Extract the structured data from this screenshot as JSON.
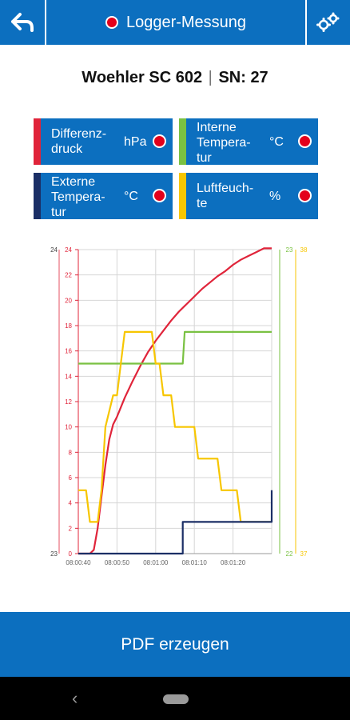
{
  "topbar": {
    "title": "Logger-Messung"
  },
  "device": {
    "name": "Woehler SC 602",
    "separator": "|",
    "serial": "SN: 27"
  },
  "sensors": [
    {
      "name_lines": [
        "Differenz-",
        "druck"
      ],
      "unit": "hPa",
      "stripe_color": "#e0243a"
    },
    {
      "name_lines": [
        "Interne",
        "Tempera-",
        "tur"
      ],
      "unit": "°C",
      "stripe_color": "#7ac142"
    },
    {
      "name_lines": [
        "Externe",
        "Tempera-",
        "tur"
      ],
      "unit": "°C",
      "stripe_color": "#1b2f66"
    },
    {
      "name_lines": [
        "Luftfeuch-",
        "te"
      ],
      "unit": "%",
      "stripe_color": "#f7c600"
    }
  ],
  "chart_data": {
    "type": "line",
    "x_ticks": [
      "08:00:40",
      "08:00:50",
      "08:01:00",
      "08:01:10",
      "08:01:20"
    ],
    "left_axis": {
      "ticks": [
        "0",
        "2",
        "4",
        "6",
        "8",
        "10",
        "12",
        "14",
        "16",
        "18",
        "20",
        "22",
        "24"
      ],
      "top_label": "24",
      "bottom_label": "23",
      "color": "#e0243a",
      "range": [
        0,
        24
      ]
    },
    "right_axis_green": {
      "top_label": "23",
      "bottom_label": "22",
      "color": "#7ac142"
    },
    "right_axis_yellow": {
      "top_label": "38",
      "bottom_label": "37",
      "color": "#f7c600"
    },
    "series": [
      {
        "color": "#e0243a",
        "x": [
          0,
          3,
          4,
          5,
          6,
          7,
          8,
          9,
          10,
          12,
          14,
          16,
          18,
          20,
          22,
          24,
          26,
          28,
          30,
          32,
          34,
          36,
          38,
          40,
          42,
          44,
          46,
          48,
          50
        ],
        "y": [
          0,
          0,
          0.3,
          2,
          4.5,
          7,
          9,
          10.2,
          10.8,
          12.3,
          13.6,
          14.8,
          15.9,
          16.8,
          17.6,
          18.4,
          19.1,
          19.7,
          20.3,
          20.9,
          21.4,
          21.9,
          22.3,
          22.8,
          23.2,
          23.5,
          23.8,
          24.1,
          24.1
        ]
      },
      {
        "color": "#7ac142",
        "x": [
          0,
          27,
          27.5,
          50
        ],
        "y": [
          15,
          15,
          17.5,
          17.5
        ]
      },
      {
        "color": "#f7c600",
        "x": [
          0,
          2,
          3,
          5,
          6,
          7,
          9,
          10,
          11,
          12,
          13,
          14,
          19,
          20,
          21,
          22,
          24,
          25,
          30,
          31,
          36,
          37,
          41,
          42,
          49,
          50
        ],
        "y": [
          5,
          5,
          2.5,
          2.5,
          5,
          10,
          12.5,
          12.5,
          15,
          17.5,
          17.5,
          17.5,
          17.5,
          15,
          15,
          12.5,
          12.5,
          10,
          10,
          7.5,
          7.5,
          5,
          5,
          2.5,
          2.5,
          2.5
        ]
      },
      {
        "color": "#1b2f66",
        "x": [
          0,
          27,
          27,
          49,
          50,
          50
        ],
        "y": [
          0,
          0,
          2.5,
          2.5,
          2.5,
          5
        ]
      }
    ],
    "xlim": [
      0,
      50
    ],
    "ylim": [
      0,
      24
    ],
    "grid": true
  },
  "actions": {
    "pdf_label": "PDF erzeugen"
  }
}
